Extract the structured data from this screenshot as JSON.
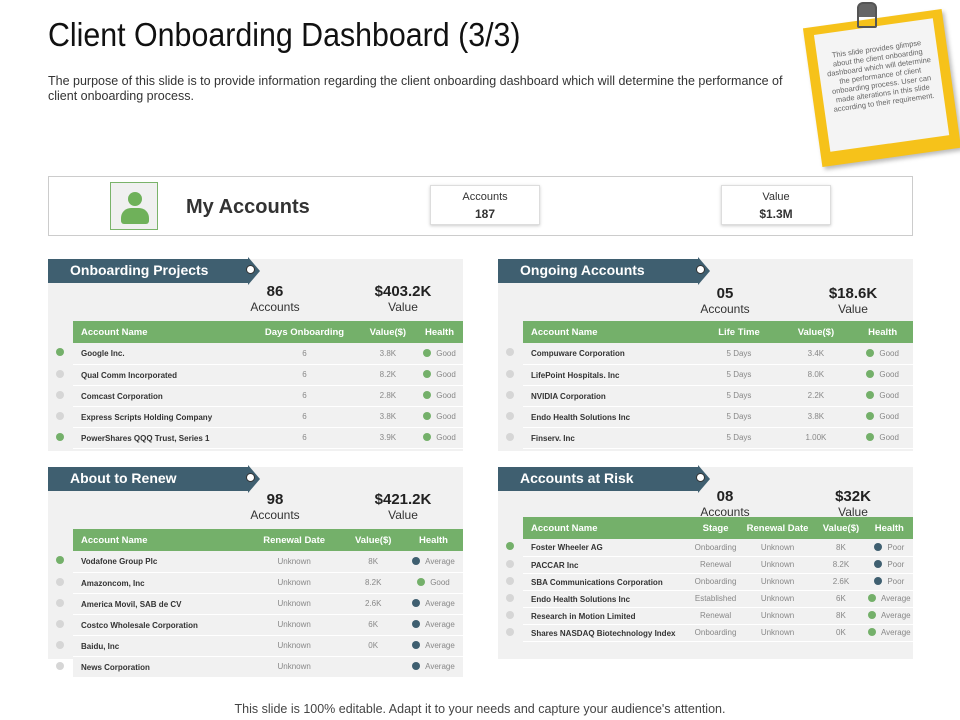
{
  "title": "Client Onboarding Dashboard (3/3)",
  "subtitle": "The purpose of this slide is to provide information regarding the client onboarding dashboard which will determine the performance of client onboarding process.",
  "note": "This slide provides glimpse about the client onboarding dashboard which will determine the performance of client onboarding process. User can made alterations in this slide according to their requirement.",
  "colors": {
    "green": "#74b06a",
    "navy": "#3f5f70",
    "gray": "#d6d6d6",
    "yellow": "#f6c21a"
  },
  "my_accounts": {
    "title": "My Accounts",
    "icon": "user-icon",
    "accounts_label": "Accounts",
    "accounts": "187",
    "value_label": "Value",
    "value": "$1.3M"
  },
  "panels": [
    {
      "id": "onboarding",
      "title": "Onboarding Projects",
      "count": "86",
      "count_label": "Accounts",
      "value": "$403.2K",
      "value_label": "Value",
      "columns": [
        "Account Name",
        "Days Onboarding",
        "Value($)",
        "Health"
      ],
      "rows": [
        {
          "marker": "green",
          "cells": [
            "Google Inc.",
            "6",
            "3.8K"
          ],
          "health": "Good",
          "health_color": "green"
        },
        {
          "marker": "gray",
          "cells": [
            "Qual Comm Incorporated",
            "6",
            "8.2K"
          ],
          "health": "Good",
          "health_color": "green"
        },
        {
          "marker": "gray",
          "cells": [
            "Comcast Corporation",
            "6",
            "2.8K"
          ],
          "health": "Good",
          "health_color": "green"
        },
        {
          "marker": "gray",
          "cells": [
            "Express Scripts Holding Company",
            "6",
            "3.8K"
          ],
          "health": "Good",
          "health_color": "green"
        },
        {
          "marker": "green",
          "cells": [
            "PowerShares QQQ Trust, Series 1",
            "6",
            "3.9K"
          ],
          "health": "Good",
          "health_color": "green"
        }
      ]
    },
    {
      "id": "ongoing",
      "title": "Ongoing Accounts",
      "count": "05",
      "count_label": "Accounts",
      "value": "$18.6K",
      "value_label": "Value",
      "columns": [
        "Account Name",
        "Life Time",
        "Value($)",
        "Health"
      ],
      "rows": [
        {
          "marker": "gray",
          "cells": [
            "Compuware Corporation",
            "5 Days",
            "3.4K"
          ],
          "health": "Good",
          "health_color": "green"
        },
        {
          "marker": "gray",
          "cells": [
            "LifePoint Hospitals. Inc",
            "5 Days",
            "8.0K"
          ],
          "health": "Good",
          "health_color": "green"
        },
        {
          "marker": "gray",
          "cells": [
            "NVIDIA Corporation",
            "5 Days",
            "2.2K"
          ],
          "health": "Good",
          "health_color": "green"
        },
        {
          "marker": "gray",
          "cells": [
            "Endo Health Solutions Inc",
            "5 Days",
            "3.8K"
          ],
          "health": "Good",
          "health_color": "green"
        },
        {
          "marker": "gray",
          "cells": [
            "Finserv. Inc",
            "5 Days",
            "1.00K"
          ],
          "health": "Good",
          "health_color": "green"
        }
      ]
    },
    {
      "id": "renew",
      "title": "About to Renew",
      "count": "98",
      "count_label": "Accounts",
      "value": "$421.2K",
      "value_label": "Value",
      "columns": [
        "Account Name",
        "Renewal Date",
        "Value($)",
        "Health"
      ],
      "rows": [
        {
          "marker": "green",
          "cells": [
            "Vodafone Group Plc",
            "Unknown",
            "8K"
          ],
          "health": "Average",
          "health_color": "navy"
        },
        {
          "marker": "gray",
          "cells": [
            "Amazoncom, Inc",
            "Unknown",
            "8.2K"
          ],
          "health": "Good",
          "health_color": "green"
        },
        {
          "marker": "gray",
          "cells": [
            "America Movil, SAB de CV",
            "Unknown",
            "2.6K"
          ],
          "health": "Average",
          "health_color": "navy"
        },
        {
          "marker": "gray",
          "cells": [
            "Costco Wholesale Corporation",
            "Unknown",
            "6K"
          ],
          "health": "Average",
          "health_color": "navy"
        },
        {
          "marker": "gray",
          "cells": [
            "Baidu, Inc",
            "Unknown",
            "0K"
          ],
          "health": "Average",
          "health_color": "navy"
        },
        {
          "marker": "gray",
          "cells": [
            "News Corporation",
            "Unknown",
            ""
          ],
          "health": "Average",
          "health_color": "navy"
        }
      ]
    },
    {
      "id": "risk",
      "title": "Accounts at Risk",
      "count": "08",
      "count_label": "Accounts",
      "value": "$32K",
      "value_label": "Value",
      "columns": [
        "Account Name",
        "Stage",
        "Renewal Date",
        "Value($)",
        "Health"
      ],
      "rows": [
        {
          "marker": "green",
          "cells": [
            "Foster Wheeler AG",
            "Onboarding",
            "Unknown",
            "8K"
          ],
          "health": "Poor",
          "health_color": "navy"
        },
        {
          "marker": "gray",
          "cells": [
            "PACCAR Inc",
            "Renewal",
            "Unknown",
            "8.2K"
          ],
          "health": "Poor",
          "health_color": "navy"
        },
        {
          "marker": "gray",
          "cells": [
            "SBA Communications Corporation",
            "Onboarding",
            "Unknown",
            "2.6K"
          ],
          "health": "Poor",
          "health_color": "navy"
        },
        {
          "marker": "gray",
          "cells": [
            "Endo Health Solutions Inc",
            "Established",
            "Unknown",
            "6K"
          ],
          "health": "Average",
          "health_color": "green"
        },
        {
          "marker": "gray",
          "cells": [
            "Research in Motion Limited",
            "Renewal",
            "Unknown",
            "8K"
          ],
          "health": "Average",
          "health_color": "green"
        },
        {
          "marker": "gray",
          "cells": [
            "Shares NASDAQ Biotechnology Index",
            "Onboarding",
            "Unknown",
            "0K"
          ],
          "health": "Average",
          "health_color": "green"
        }
      ]
    }
  ],
  "footer": "This slide is 100% editable. Adapt it to your needs and capture your audience's attention."
}
